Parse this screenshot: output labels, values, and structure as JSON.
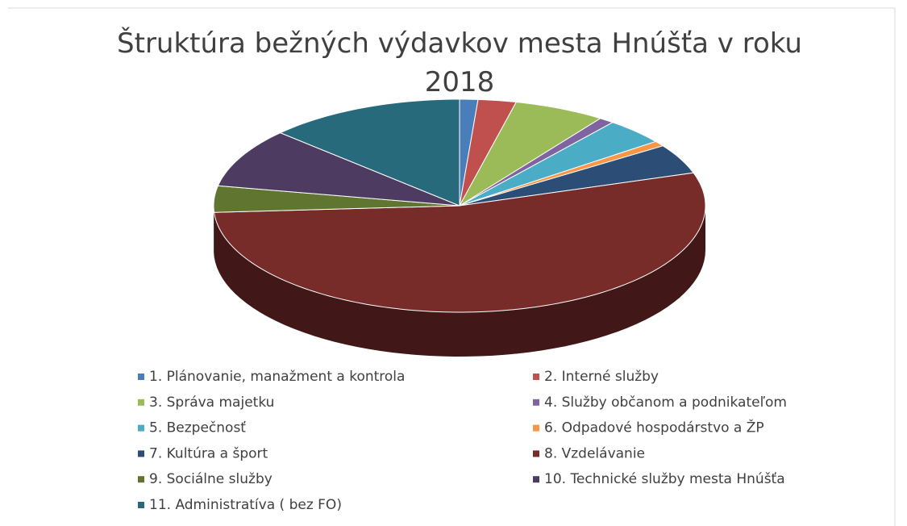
{
  "chart_data": {
    "type": "pie3d",
    "title": "Štruktúra bežných výdavkov mesta Hnúšťa v roku 2018",
    "categories": [
      "1. Plánovanie, manažment a kontrola",
      "2. Interné služby",
      "3. Správa majetku",
      "4. Služby občanom a podnikateľom",
      "5. Bezpečnosť",
      "6. Odpadové hospodárstvo a ŽP",
      "7. Kultúra a šport",
      "8. Vzdelávanie",
      "9. Sociálne služby",
      "10. Technické služby mesta Hnúšťa",
      "11. Administratíva ( bez FO)"
    ],
    "values": [
      1.2,
      2.5,
      6,
      1,
      4,
      0.8,
      4.5,
      54,
      4,
      9,
      13
    ],
    "colors": [
      "#4a7ebb",
      "#c0504d",
      "#9bbb59",
      "#8064a2",
      "#4bacc6",
      "#f79646",
      "#2c4d75",
      "#772c2a",
      "#5f7530",
      "#4d3b62",
      "#276a7c"
    ],
    "legend": "bottom"
  }
}
